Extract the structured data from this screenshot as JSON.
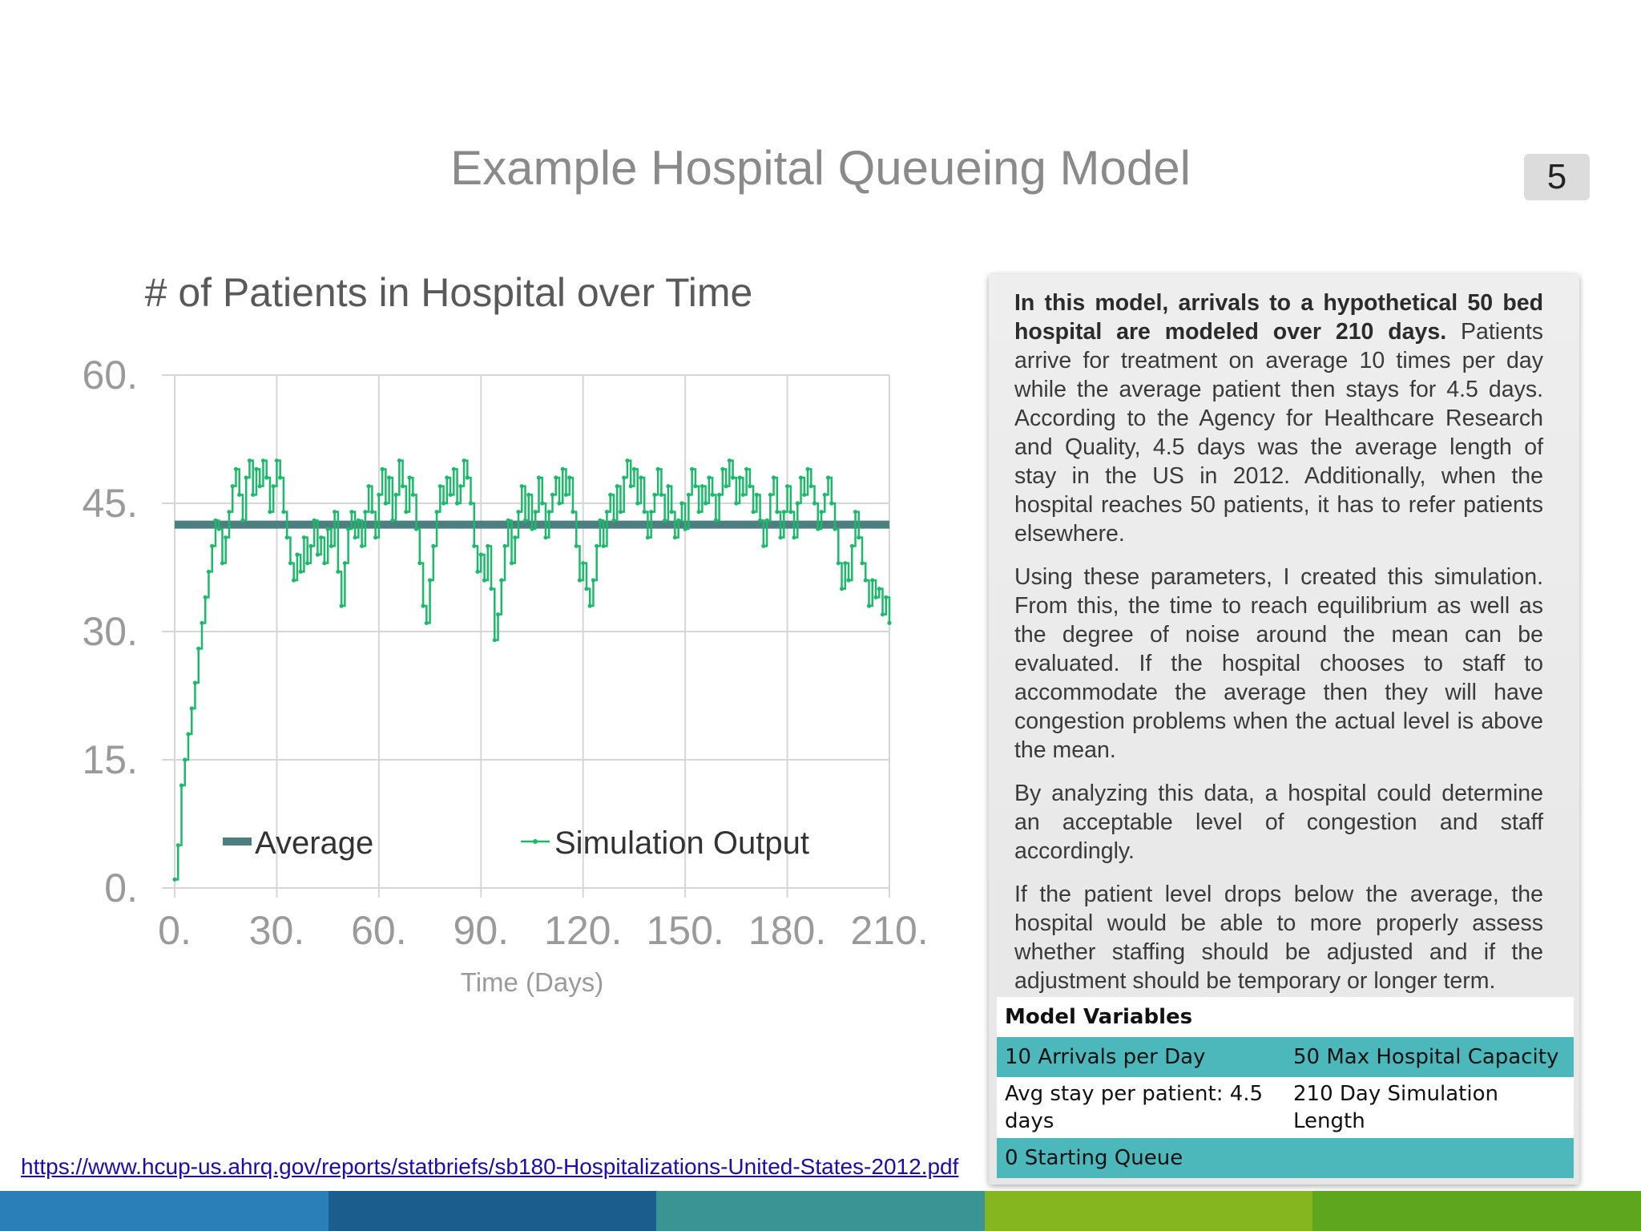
{
  "slide": {
    "title": "Example Hospital Queueing Model",
    "page_number": "5"
  },
  "chart_data": {
    "type": "line",
    "title": "# of Patients in Hospital over Time",
    "xlabel": "Time (Days)",
    "ylabel": "",
    "xlim": [
      0,
      210
    ],
    "ylim": [
      0,
      60
    ],
    "x_ticks": [
      "0.",
      "30.",
      "60.",
      "90.",
      "120.",
      "150.",
      "180.",
      "210."
    ],
    "y_ticks": [
      "0.",
      "15.",
      "30.",
      "45.",
      "60."
    ],
    "grid": true,
    "legend_position": "bottom",
    "series": [
      {
        "name": "Average",
        "color": "#4e7f80",
        "values": [
          [
            0,
            42.5
          ],
          [
            210,
            42.5
          ]
        ]
      },
      {
        "name": "Simulation Output",
        "color": "#1db96a",
        "values": [
          [
            0,
            1
          ],
          [
            1,
            5
          ],
          [
            2,
            12
          ],
          [
            3,
            15
          ],
          [
            4,
            18
          ],
          [
            5,
            21
          ],
          [
            6,
            24
          ],
          [
            7,
            28
          ],
          [
            8,
            31
          ],
          [
            9,
            34
          ],
          [
            10,
            37
          ],
          [
            11,
            40
          ],
          [
            12,
            43
          ],
          [
            13,
            42
          ],
          [
            14,
            38
          ],
          [
            15,
            41
          ],
          [
            16,
            44
          ],
          [
            17,
            47
          ],
          [
            18,
            49
          ],
          [
            19,
            46
          ],
          [
            20,
            43
          ],
          [
            21,
            48
          ],
          [
            22,
            50
          ],
          [
            23,
            46
          ],
          [
            24,
            49
          ],
          [
            25,
            47
          ],
          [
            26,
            50
          ],
          [
            27,
            48
          ],
          [
            28,
            44
          ],
          [
            29,
            47
          ],
          [
            30,
            50
          ],
          [
            31,
            48
          ],
          [
            32,
            44
          ],
          [
            33,
            41
          ],
          [
            34,
            38
          ],
          [
            35,
            36
          ],
          [
            36,
            39
          ],
          [
            37,
            37
          ],
          [
            38,
            41
          ],
          [
            39,
            38
          ],
          [
            40,
            40
          ],
          [
            41,
            43
          ],
          [
            42,
            39
          ],
          [
            43,
            41
          ],
          [
            44,
            38
          ],
          [
            45,
            42
          ],
          [
            46,
            40
          ],
          [
            47,
            44
          ],
          [
            48,
            37
          ],
          [
            49,
            33
          ],
          [
            50,
            38
          ],
          [
            51,
            42
          ],
          [
            52,
            44
          ],
          [
            53,
            41
          ],
          [
            54,
            43
          ],
          [
            55,
            40
          ],
          [
            56,
            44
          ],
          [
            57,
            47
          ],
          [
            58,
            44
          ],
          [
            59,
            41
          ],
          [
            60,
            46
          ],
          [
            61,
            49
          ],
          [
            62,
            45
          ],
          [
            63,
            48
          ],
          [
            64,
            43
          ],
          [
            65,
            46
          ],
          [
            66,
            50
          ],
          [
            67,
            47
          ],
          [
            68,
            44
          ],
          [
            69,
            48
          ],
          [
            70,
            46
          ],
          [
            71,
            42
          ],
          [
            72,
            38
          ],
          [
            73,
            33
          ],
          [
            74,
            31
          ],
          [
            75,
            36
          ],
          [
            76,
            40
          ],
          [
            77,
            44
          ],
          [
            78,
            47
          ],
          [
            79,
            45
          ],
          [
            80,
            48
          ],
          [
            81,
            46
          ],
          [
            82,
            49
          ],
          [
            83,
            45
          ],
          [
            84,
            47
          ],
          [
            85,
            50
          ],
          [
            86,
            48
          ],
          [
            87,
            45
          ],
          [
            88,
            40
          ],
          [
            89,
            37
          ],
          [
            90,
            39
          ],
          [
            91,
            36
          ],
          [
            92,
            40
          ],
          [
            93,
            35
          ],
          [
            94,
            29
          ],
          [
            95,
            32
          ],
          [
            96,
            36
          ],
          [
            97,
            40
          ],
          [
            98,
            43
          ],
          [
            99,
            38
          ],
          [
            100,
            41
          ],
          [
            101,
            44
          ],
          [
            102,
            47
          ],
          [
            103,
            43
          ],
          [
            104,
            46
          ],
          [
            105,
            42
          ],
          [
            106,
            44
          ],
          [
            107,
            48
          ],
          [
            108,
            45
          ],
          [
            109,
            41
          ],
          [
            110,
            44
          ],
          [
            111,
            46
          ],
          [
            112,
            48
          ],
          [
            113,
            45
          ],
          [
            114,
            49
          ],
          [
            115,
            46
          ],
          [
            116,
            48
          ],
          [
            117,
            44
          ],
          [
            118,
            40
          ],
          [
            119,
            36
          ],
          [
            120,
            38
          ],
          [
            121,
            35
          ],
          [
            122,
            33
          ],
          [
            123,
            36
          ],
          [
            124,
            40
          ],
          [
            125,
            43
          ],
          [
            126,
            40
          ],
          [
            127,
            44
          ],
          [
            128,
            46
          ],
          [
            129,
            43
          ],
          [
            130,
            47
          ],
          [
            131,
            44
          ],
          [
            132,
            48
          ],
          [
            133,
            50
          ],
          [
            134,
            47
          ],
          [
            135,
            49
          ],
          [
            136,
            45
          ],
          [
            137,
            48
          ],
          [
            138,
            44
          ],
          [
            139,
            41
          ],
          [
            140,
            44
          ],
          [
            141,
            46
          ],
          [
            142,
            49
          ],
          [
            143,
            46
          ],
          [
            144,
            43
          ],
          [
            145,
            47
          ],
          [
            146,
            44
          ],
          [
            147,
            41
          ],
          [
            148,
            43
          ],
          [
            149,
            45
          ],
          [
            150,
            42
          ],
          [
            151,
            46
          ],
          [
            152,
            49
          ],
          [
            153,
            47
          ],
          [
            154,
            44
          ],
          [
            155,
            47
          ],
          [
            156,
            45
          ],
          [
            157,
            48
          ],
          [
            158,
            46
          ],
          [
            159,
            43
          ],
          [
            160,
            46
          ],
          [
            161,
            49
          ],
          [
            162,
            47
          ],
          [
            163,
            50
          ],
          [
            164,
            48
          ],
          [
            165,
            45
          ],
          [
            166,
            48
          ],
          [
            167,
            46
          ],
          [
            168,
            49
          ],
          [
            169,
            47
          ],
          [
            170,
            44
          ],
          [
            171,
            46
          ],
          [
            172,
            43
          ],
          [
            173,
            40
          ],
          [
            174,
            43
          ],
          [
            175,
            46
          ],
          [
            176,
            48
          ],
          [
            177,
            44
          ],
          [
            178,
            41
          ],
          [
            179,
            44
          ],
          [
            180,
            47
          ],
          [
            181,
            44
          ],
          [
            182,
            41
          ],
          [
            183,
            45
          ],
          [
            184,
            48
          ],
          [
            185,
            46
          ],
          [
            186,
            49
          ],
          [
            187,
            47
          ],
          [
            188,
            45
          ],
          [
            189,
            42
          ],
          [
            190,
            44
          ],
          [
            191,
            46
          ],
          [
            192,
            48
          ],
          [
            193,
            45
          ],
          [
            194,
            42
          ],
          [
            195,
            38
          ],
          [
            196,
            35
          ],
          [
            197,
            38
          ],
          [
            198,
            36
          ],
          [
            199,
            40
          ],
          [
            200,
            44
          ],
          [
            201,
            41
          ],
          [
            202,
            38
          ],
          [
            203,
            36
          ],
          [
            204,
            33
          ],
          [
            205,
            36
          ],
          [
            206,
            34
          ],
          [
            207,
            35
          ],
          [
            208,
            32
          ],
          [
            209,
            34
          ],
          [
            210,
            31
          ]
        ]
      }
    ]
  },
  "info": {
    "intro_bold": "In this model, arrivals to a hypothetical 50 bed hospital are modeled over 210 days.",
    "intro_rest": "Patients arrive for treatment  on average 10 times per day while the average patient then stays for 4.5 days.   According to the Agency for Healthcare Research and Quality, 4.5 days was the average length of stay in the US in 2012. Additionally, when the hospital reaches 50 patients, it has to refer patients elsewhere.",
    "para2": "Using these parameters, I created this simulation. From this, the time to reach equilibrium as well as the degree of noise around the mean can be evaluated.  If the hospital chooses to staff to accommodate the average then they will have congestion problems when the actual level is above the mean.",
    "para3": "By analyzing this data, a hospital could determine an acceptable level of congestion and staff accordingly.",
    "para4": "If the patient level drops below the average, the hospital would be able to more properly assess whether staffing should be adjusted and if the adjustment should be temporary or longer term."
  },
  "variables": {
    "header": "Model Variables",
    "r1c1": "10 Arrivals per Day",
    "r1c2": "50 Max Hospital Capacity",
    "r2c1": "Avg stay per patient: 4.5 days",
    "r2c2": "210 Day Simulation Length",
    "r3c1": "0 Starting Queue"
  },
  "source_url": "https://www.hcup-us.ahrq.gov/reports/statbriefs/sb180-Hospitalizations-United-States-2012.pdf",
  "colors": {
    "footer": [
      "#2a7fb8",
      "#1b5d8c",
      "#3a9494",
      "#85b51f",
      "#5ea61d"
    ],
    "table_teal": "#4db8bb"
  }
}
